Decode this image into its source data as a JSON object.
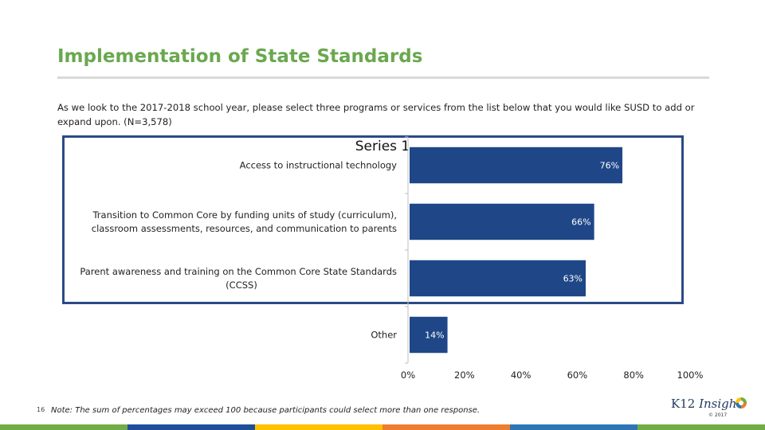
{
  "slide": {
    "title": "Implementation of State Standards",
    "question": "As we look to the 2017-2018 school year, please select three programs or services from the list below that you would like SUSD to add or expand upon. (N=3,578)",
    "page_number": "16",
    "footnote": "Note: The sum of percentages may exceed 100 because participants could select more than one response."
  },
  "logo": {
    "k12": "K12 ",
    "insight": "Insight",
    "copyright": "© 2017"
  },
  "colors": {
    "title": "#6aa84f",
    "bar": "#1f4788",
    "frame": "#2b4a86",
    "strip": [
      "#70ad47",
      "#1f4e9b",
      "#ffc000",
      "#ed7d31",
      "#2e75b6",
      "#70ad47"
    ]
  },
  "chart_data": {
    "type": "bar",
    "orientation": "horizontal",
    "title": "Series 1",
    "categories": [
      "Access to instructional technology",
      "Transition to Common Core by funding units of study (curriculum), classroom assessments, resources, and communication to parents",
      "Parent awareness and training on the Common Core State Standards (CCSS)",
      "Other"
    ],
    "category_lines": [
      [
        "Access to instructional technology"
      ],
      [
        "Transition to Common Core by funding units of study (curriculum),",
        "classroom assessments, resources, and communication to parents"
      ],
      [
        "Parent awareness and training on the Common Core State Standards",
        "(CCSS)"
      ],
      [
        "Other"
      ]
    ],
    "values": [
      76,
      66,
      63,
      14
    ],
    "data_labels": [
      "76%",
      "66%",
      "63%",
      "14%"
    ],
    "xlim": [
      0,
      100
    ],
    "x_ticks": [
      0,
      20,
      40,
      60,
      80,
      100
    ],
    "x_tick_labels": [
      "0%",
      "20%",
      "40%",
      "60%",
      "80%",
      "100%"
    ],
    "grid": false
  }
}
